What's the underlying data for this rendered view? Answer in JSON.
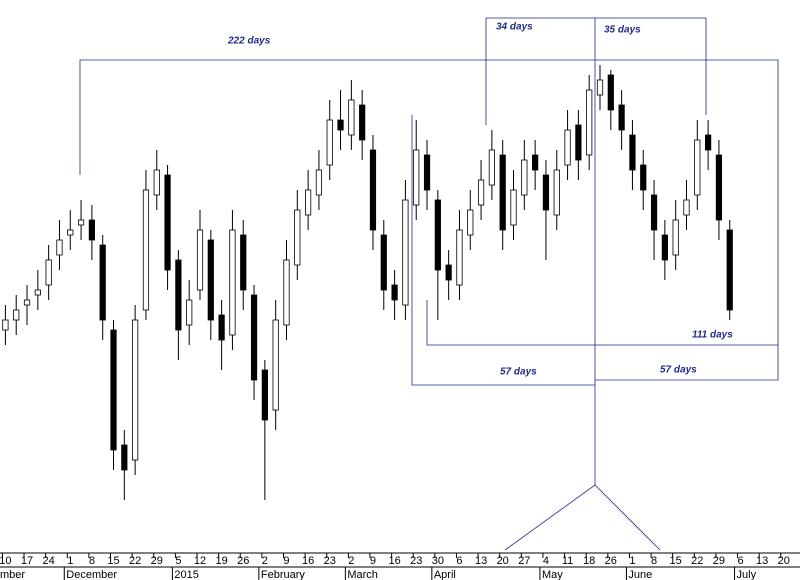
{
  "chart_data": {
    "type": "candlestick",
    "categories": [
      "10",
      null,
      "17",
      null,
      "24",
      null,
      "1",
      null,
      "8",
      null,
      "15",
      null,
      "22",
      null,
      "29",
      null,
      "5",
      null,
      "12",
      null,
      "19",
      null,
      "26",
      null,
      "2",
      null,
      "9",
      null,
      "16",
      null,
      "23",
      null,
      "2",
      null,
      "9",
      null,
      "16",
      null,
      "23",
      null,
      "30",
      null,
      "6",
      null,
      "13",
      null,
      "20",
      null,
      "27",
      null,
      "4",
      null,
      "11",
      null,
      "18",
      null,
      "26",
      null,
      "1",
      null,
      "8",
      null,
      "15",
      null,
      "22",
      null,
      "29",
      null,
      "6",
      null,
      "13",
      null,
      "20",
      null
    ],
    "months": [
      "mber",
      "December",
      "2015",
      "February",
      "March",
      "April",
      "May",
      "June",
      "July"
    ],
    "series": [
      {
        "name": "Price",
        "open": [
          38,
          40,
          43,
          45,
          47,
          53,
          57,
          59,
          60,
          55,
          38,
          15,
          12,
          42,
          65,
          69,
          52,
          39,
          46,
          56,
          41,
          37,
          57,
          45,
          30,
          22,
          39,
          51,
          61,
          65,
          71,
          80,
          77,
          83,
          74,
          57,
          47,
          43,
          63,
          73,
          64,
          51,
          47,
          57,
          63,
          67,
          73,
          59,
          65,
          73,
          69,
          61,
          71,
          79,
          73,
          85,
          89,
          83,
          77,
          71,
          65,
          57,
          53,
          61,
          65,
          77,
          73,
          58,
          null,
          null,
          null,
          null,
          null,
          null
        ],
        "high": [
          43,
          45,
          47,
          50,
          55,
          60,
          62,
          64,
          63,
          57,
          40,
          18,
          43,
          70,
          74,
          71,
          54,
          48,
          62,
          58,
          44,
          62,
          60,
          47,
          32,
          44,
          56,
          66,
          70,
          74,
          84,
          86,
          88,
          86,
          77,
          60,
          50,
          68,
          80,
          76,
          66,
          54,
          62,
          66,
          72,
          78,
          76,
          70,
          76,
          76,
          72,
          74,
          82,
          82,
          89,
          91,
          90,
          86,
          80,
          74,
          68,
          60,
          64,
          68,
          80,
          80,
          76,
          60,
          null,
          null,
          null,
          null,
          null,
          null
        ],
        "low": [
          35,
          37,
          39,
          42,
          44,
          50,
          54,
          56,
          52,
          36,
          10,
          4,
          9,
          40,
          62,
          46,
          32,
          35,
          44,
          36,
          30,
          34,
          42,
          24,
          4,
          18,
          36,
          48,
          58,
          62,
          68,
          74,
          74,
          72,
          54,
          42,
          40,
          40,
          60,
          62,
          40,
          44,
          44,
          54,
          60,
          64,
          54,
          56,
          62,
          66,
          52,
          58,
          68,
          68,
          70,
          82,
          78,
          74,
          66,
          62,
          52,
          48,
          50,
          58,
          62,
          70,
          56,
          40,
          null,
          null,
          null,
          null,
          null,
          null
        ],
        "close": [
          40,
          42,
          44,
          46,
          52,
          56,
          58,
          60,
          56,
          40,
          14,
          10,
          40,
          66,
          70,
          50,
          38,
          44,
          58,
          40,
          36,
          58,
          46,
          28,
          20,
          40,
          52,
          62,
          66,
          70,
          80,
          78,
          84,
          76,
          58,
          46,
          44,
          64,
          74,
          66,
          50,
          48,
          58,
          62,
          68,
          74,
          58,
          66,
          72,
          70,
          62,
          70,
          78,
          72,
          86,
          88,
          82,
          78,
          70,
          66,
          58,
          52,
          60,
          64,
          76,
          74,
          60,
          42,
          null,
          null,
          null,
          null,
          null,
          null
        ],
        "up_color": "#ffffff",
        "down_color": "#000000"
      }
    ],
    "ylim": [
      0,
      100
    ],
    "annotations": [
      "222 days",
      "34 days",
      "35 days",
      "111 days",
      "57 days",
      "57 days"
    ],
    "annotation_color": "#1f2a8a"
  }
}
